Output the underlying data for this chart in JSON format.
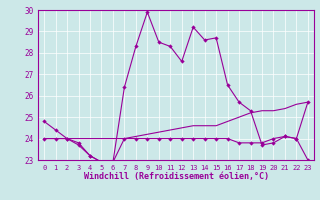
{
  "xlabel": "Windchill (Refroidissement éolien,°C)",
  "xlim": [
    -0.5,
    23.5
  ],
  "ylim": [
    23,
    30
  ],
  "yticks": [
    23,
    24,
    25,
    26,
    27,
    28,
    29,
    30
  ],
  "xticks": [
    0,
    1,
    2,
    3,
    4,
    5,
    6,
    7,
    8,
    9,
    10,
    11,
    12,
    13,
    14,
    15,
    16,
    17,
    18,
    19,
    20,
    21,
    22,
    23
  ],
  "background_color": "#cce8e8",
  "line_color": "#990099",
  "series1": [
    24.8,
    24.4,
    24.0,
    23.8,
    23.2,
    22.9,
    22.9,
    26.4,
    28.3,
    29.9,
    28.5,
    28.3,
    27.6,
    29.2,
    28.6,
    28.7,
    26.5,
    25.7,
    25.3,
    23.7,
    23.8,
    24.1,
    24.0,
    25.7
  ],
  "series2": [
    24.0,
    24.0,
    24.0,
    23.7,
    23.2,
    22.9,
    22.9,
    24.0,
    24.0,
    24.0,
    24.0,
    24.0,
    24.0,
    24.0,
    24.0,
    24.0,
    24.0,
    23.8,
    23.8,
    23.8,
    24.0,
    24.1,
    24.0,
    23.0
  ],
  "series3": [
    24.0,
    24.0,
    24.0,
    24.0,
    24.0,
    24.0,
    24.0,
    24.0,
    24.1,
    24.2,
    24.3,
    24.4,
    24.5,
    24.6,
    24.6,
    24.6,
    24.8,
    25.0,
    25.2,
    25.3,
    25.3,
    25.4,
    25.6,
    25.7
  ]
}
